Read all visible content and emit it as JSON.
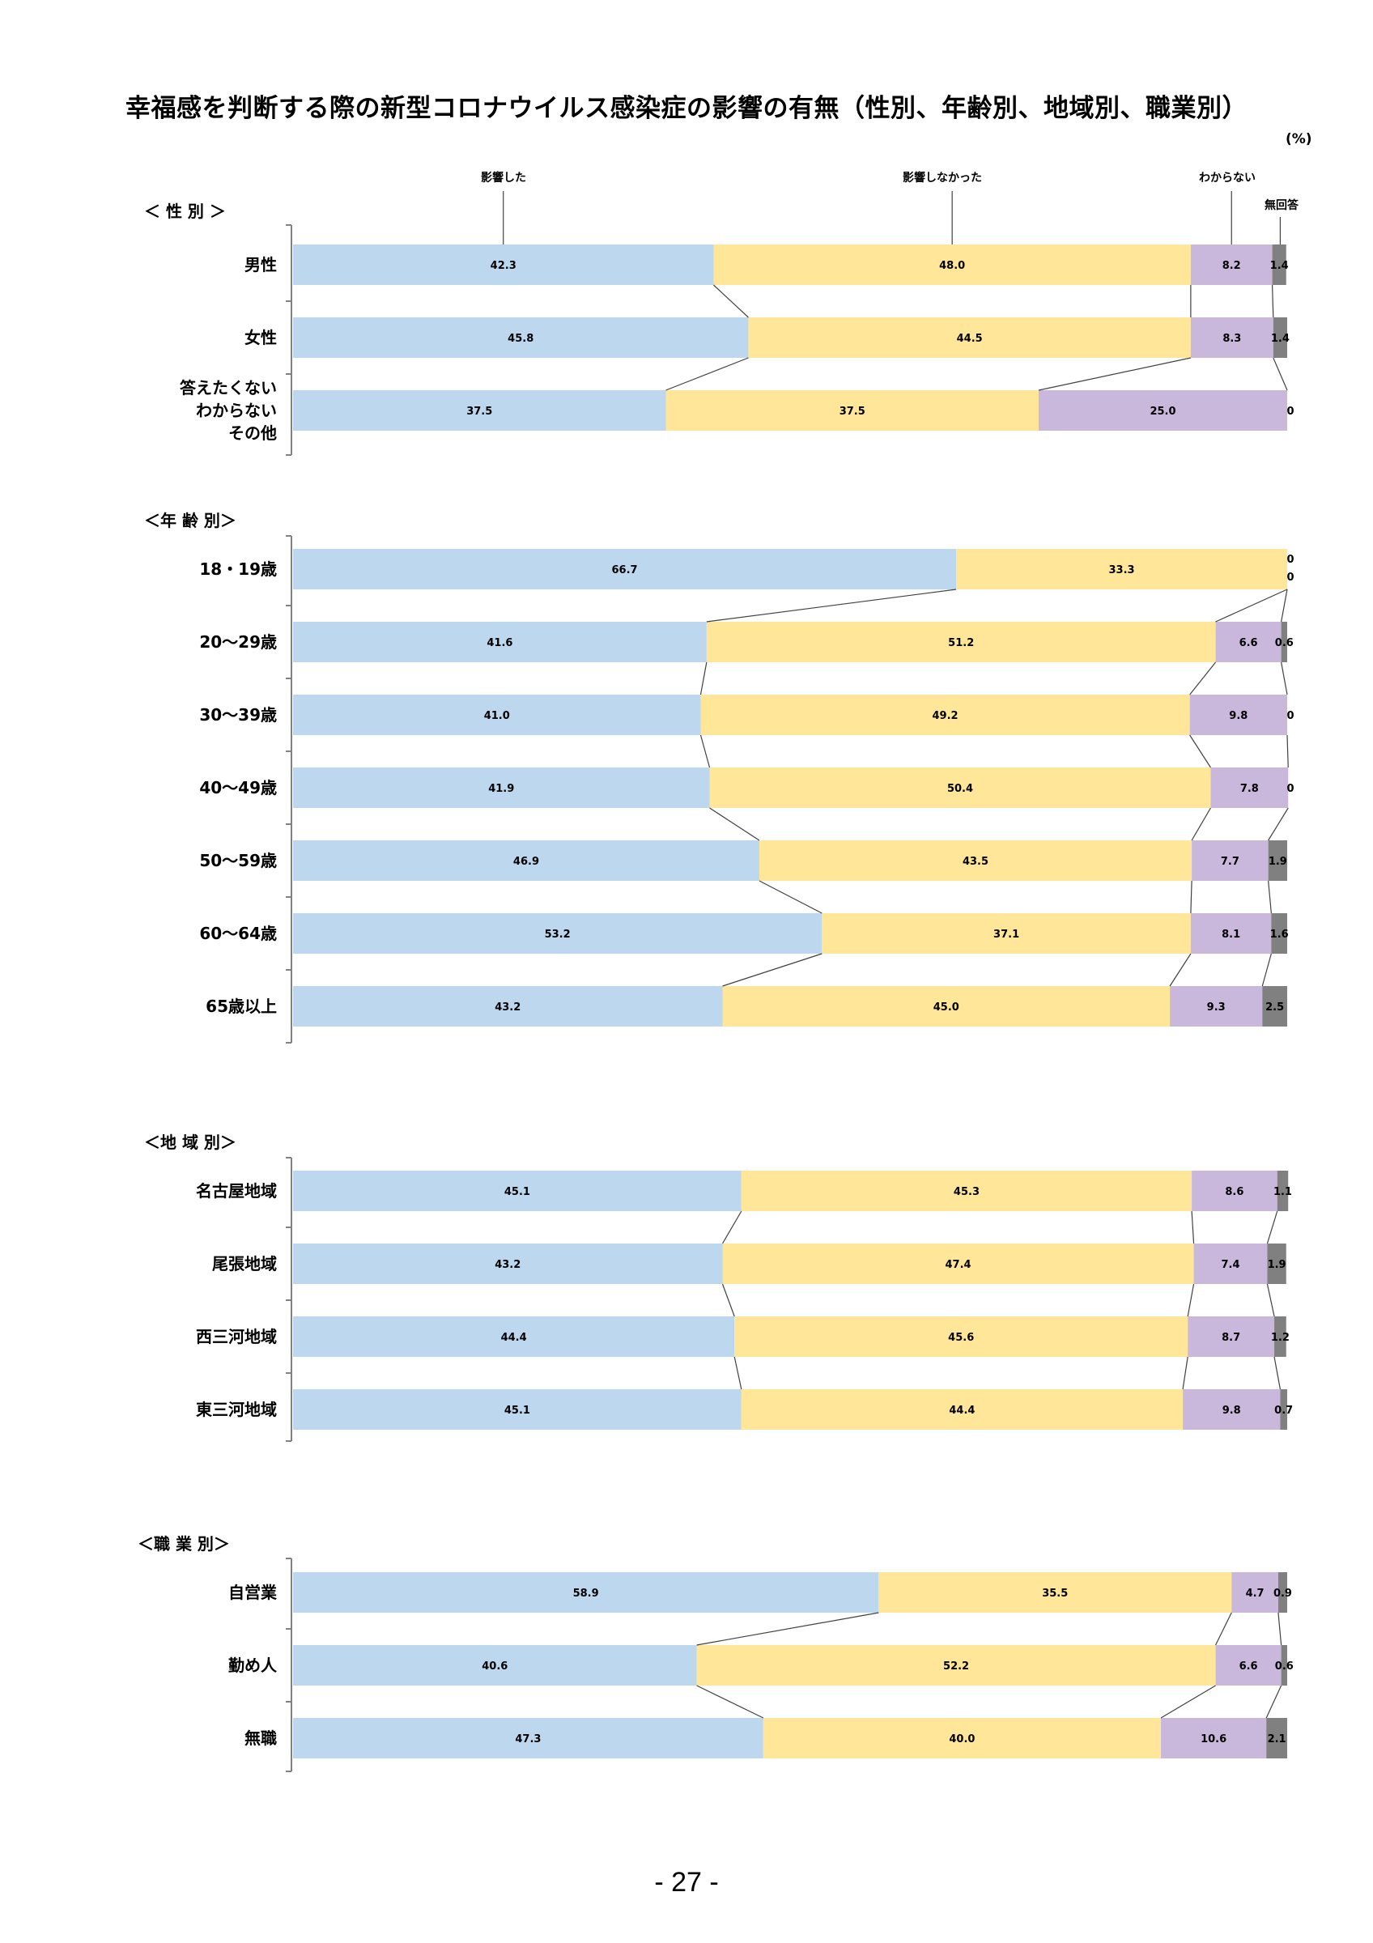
{
  "title": "幸福感を判断する際の新型コロナウイルス感染症の影響の有無（性別、年齢別、地域別、職業別）",
  "unit": "(%)",
  "page_number": "- 27 -",
  "colors": {
    "affected": "#bdd7ee",
    "not_affected": "#ffe699",
    "unknown": "#c9b8dc",
    "no_answer": "#808080",
    "connector": "#404040",
    "axis": "#808080"
  },
  "chart_data": {
    "type": "bar",
    "stacked": true,
    "orientation": "horizontal",
    "legend": [
      "影響した",
      "影響しなかった",
      "わからない",
      "無回答"
    ],
    "xlim": [
      0,
      100
    ],
    "sections": [
      {
        "title": "＜ 性 別 ＞",
        "categories": [
          [
            "男性"
          ],
          [
            "女性"
          ],
          [
            "答えたくない",
            "わからない",
            "その他"
          ]
        ],
        "values": [
          [
            42.3,
            48.0,
            8.2,
            1.4
          ],
          [
            45.8,
            44.5,
            8.3,
            1.4
          ],
          [
            37.5,
            37.5,
            25.0,
            0
          ]
        ],
        "labels": [
          [
            "42.3",
            "48.0",
            "8.2",
            "1.4"
          ],
          [
            "45.8",
            "44.5",
            "8.3",
            "1.4"
          ],
          [
            "37.5",
            "37.5",
            "25.0",
            "0"
          ]
        ]
      },
      {
        "title": "＜年 齢 別＞",
        "categories": [
          [
            "18・19歳"
          ],
          [
            "20～29歳"
          ],
          [
            "30～39歳"
          ],
          [
            "40～49歳"
          ],
          [
            "50～59歳"
          ],
          [
            "60～64歳"
          ],
          [
            "65歳以上"
          ]
        ],
        "values": [
          [
            66.7,
            33.3,
            0,
            0
          ],
          [
            41.6,
            51.2,
            6.6,
            0.6
          ],
          [
            41.0,
            49.2,
            9.8,
            0
          ],
          [
            41.9,
            50.4,
            7.8,
            0
          ],
          [
            46.9,
            43.5,
            7.7,
            1.9
          ],
          [
            53.2,
            37.1,
            8.1,
            1.6
          ],
          [
            43.2,
            45.0,
            9.3,
            2.5
          ]
        ],
        "labels": [
          [
            "66.7",
            "33.3",
            "0",
            "0"
          ],
          [
            "41.6",
            "51.2",
            "6.6",
            "0.6"
          ],
          [
            "41.0",
            "49.2",
            "9.8",
            "0"
          ],
          [
            "41.9",
            "50.4",
            "7.8",
            "0"
          ],
          [
            "46.9",
            "43.5",
            "7.7",
            "1.9"
          ],
          [
            "53.2",
            "37.1",
            "8.1",
            "1.6"
          ],
          [
            "43.2",
            "45.0",
            "9.3",
            "2.5"
          ]
        ]
      },
      {
        "title": "＜地 域 別＞",
        "categories": [
          [
            "名古屋地域"
          ],
          [
            "尾張地域"
          ],
          [
            "西三河地域"
          ],
          [
            "東三河地域"
          ]
        ],
        "values": [
          [
            45.1,
            45.3,
            8.6,
            1.1
          ],
          [
            43.2,
            47.4,
            7.4,
            1.9
          ],
          [
            44.4,
            45.6,
            8.7,
            1.2
          ],
          [
            45.1,
            44.4,
            9.8,
            0.7
          ]
        ],
        "labels": [
          [
            "45.1",
            "45.3",
            "8.6",
            "1.1"
          ],
          [
            "43.2",
            "47.4",
            "7.4",
            "1.9"
          ],
          [
            "44.4",
            "45.6",
            "8.7",
            "1.2"
          ],
          [
            "45.1",
            "44.4",
            "9.8",
            "0.7"
          ]
        ]
      },
      {
        "title": "＜職 業 別＞",
        "categories": [
          [
            "自営業"
          ],
          [
            "勤め人"
          ],
          [
            "無職"
          ]
        ],
        "values": [
          [
            58.9,
            35.5,
            4.7,
            0.9
          ],
          [
            40.6,
            52.2,
            6.6,
            0.6
          ],
          [
            47.3,
            40.0,
            10.6,
            2.1
          ]
        ],
        "labels": [
          [
            "58.9",
            "35.5",
            "4.7",
            "0.9"
          ],
          [
            "40.6",
            "52.2",
            "6.6",
            "0.6"
          ],
          [
            "47.3",
            "40.0",
            "10.6",
            "2.1"
          ]
        ]
      }
    ]
  }
}
